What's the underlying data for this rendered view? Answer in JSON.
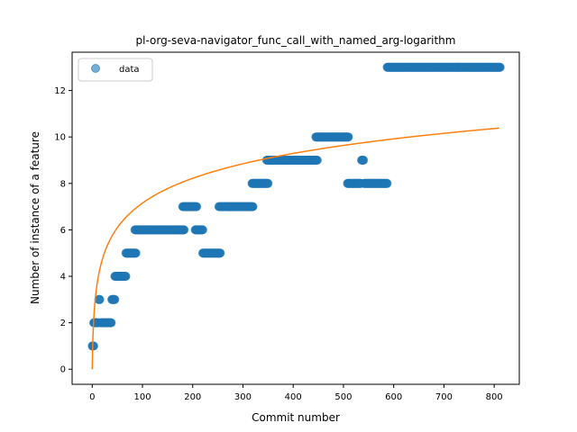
{
  "chart_data": {
    "type": "scatter",
    "title": "pl-org-seva-navigator_func_call_with_named_arg-logarithm",
    "xlabel": "Commit number",
    "ylabel": "Number of instance of a feature",
    "xlim": [
      -40,
      850
    ],
    "ylim": [
      -0.65,
      13.65
    ],
    "xticks": [
      0,
      100,
      200,
      300,
      400,
      500,
      600,
      700,
      800
    ],
    "yticks": [
      0,
      2,
      4,
      6,
      8,
      10,
      12
    ],
    "grid": false,
    "legend": {
      "position": "upper-left",
      "entries": [
        "data"
      ]
    },
    "series": [
      {
        "name": "data",
        "kind": "scatter",
        "color": "#1f77b4",
        "segments": [
          {
            "x_start": 0,
            "x_end": 3,
            "y": 1
          },
          {
            "x_start": 3,
            "x_end": 12,
            "y": 2
          },
          {
            "x_start": 13,
            "x_end": 15,
            "y": 3
          },
          {
            "x_start": 16,
            "x_end": 38,
            "y": 2
          },
          {
            "x_start": 39,
            "x_end": 45,
            "y": 3
          },
          {
            "x_start": 45,
            "x_end": 67,
            "y": 4
          },
          {
            "x_start": 67,
            "x_end": 87,
            "y": 5
          },
          {
            "x_start": 85,
            "x_end": 183,
            "y": 6
          },
          {
            "x_start": 180,
            "x_end": 208,
            "y": 7
          },
          {
            "x_start": 205,
            "x_end": 220,
            "y": 6
          },
          {
            "x_start": 220,
            "x_end": 255,
            "y": 5
          },
          {
            "x_start": 252,
            "x_end": 320,
            "y": 7
          },
          {
            "x_start": 318,
            "x_end": 350,
            "y": 8
          },
          {
            "x_start": 347,
            "x_end": 448,
            "y": 9
          },
          {
            "x_start": 445,
            "x_end": 510,
            "y": 10
          },
          {
            "x_start": 508,
            "x_end": 535,
            "y": 8
          },
          {
            "x_start": 536,
            "x_end": 540,
            "y": 9
          },
          {
            "x_start": 541,
            "x_end": 587,
            "y": 8
          },
          {
            "x_start": 587,
            "x_end": 812,
            "y": 13
          }
        ]
      },
      {
        "kind": "line",
        "color": "#ff7f0e",
        "fit": {
          "model": "a*ln(x+1)",
          "a": 1.55,
          "x_range": [
            0,
            810
          ]
        }
      }
    ]
  }
}
